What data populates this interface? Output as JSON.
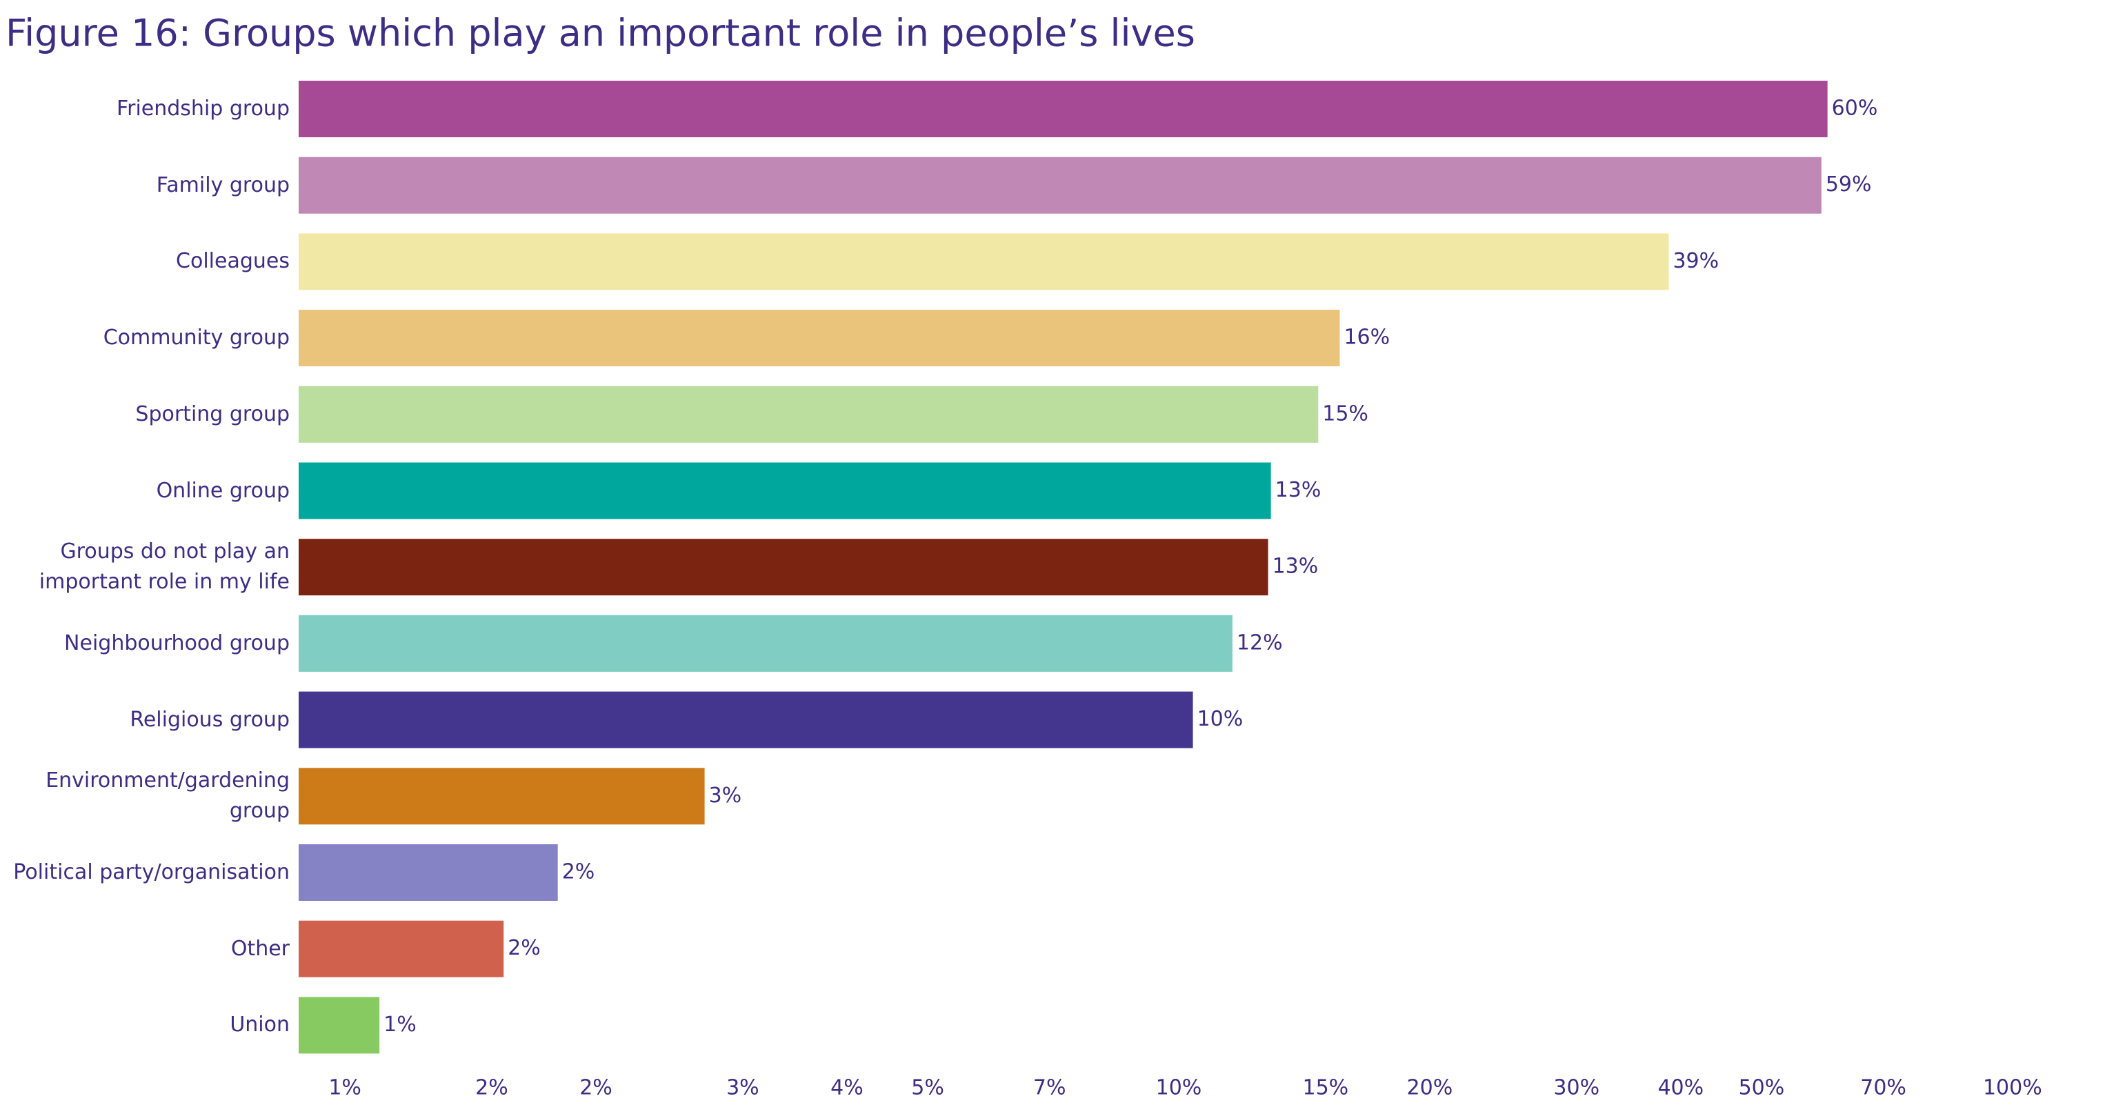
{
  "chart_data": {
    "type": "bar",
    "orientation": "horizontal",
    "title": "Figure 16: Groups which play an important role in people’s lives",
    "categories": [
      "Friendship group",
      "Family group",
      "Colleagues",
      "Community group",
      "Sporting group",
      "Online group",
      "Groups do not play an\nimportant role in my life",
      "Neighbourhood group",
      "Religious group",
      "Environment/gardening\ngroup",
      "Political party/organisation",
      "Other",
      "Union"
    ],
    "values": [
      60,
      59,
      38.7,
      15.6,
      14.7,
      12.9,
      12.8,
      11.6,
      10.4,
      2.7,
      1.8,
      1.55,
      1.1
    ],
    "value_labels": [
      "60%",
      "59%",
      "39%",
      "16%",
      "15%",
      "13%",
      "13%",
      "12%",
      "10%",
      "3%",
      "2%",
      "2%",
      "1%"
    ],
    "colors": [
      "#a64a96",
      "#c088b4",
      "#f2e8a6",
      "#ebc47c",
      "#bbdd9e",
      "#00a79d",
      "#7b2412",
      "#80cdc3",
      "#44358f",
      "#cd7a19",
      "#8682c6",
      "#d0614c",
      "#88ca62"
    ],
    "xscale": "log",
    "xlim": [
      0.88,
      125
    ],
    "xticks": [
      {
        "value": 1,
        "label": "1%"
      },
      {
        "value": 1.5,
        "label": "2%"
      },
      {
        "value": 2,
        "label": "2%"
      },
      {
        "value": 3,
        "label": "3%"
      },
      {
        "value": 4,
        "label": "4%"
      },
      {
        "value": 5,
        "label": "5%"
      },
      {
        "value": 7,
        "label": "7%"
      },
      {
        "value": 10,
        "label": "10%"
      },
      {
        "value": 15,
        "label": "15%"
      },
      {
        "value": 20,
        "label": "20%"
      },
      {
        "value": 30,
        "label": "30%"
      },
      {
        "value": 40,
        "label": "40%"
      },
      {
        "value": 50,
        "label": "50%"
      },
      {
        "value": 70,
        "label": "70%"
      },
      {
        "value": 100,
        "label": "100%"
      }
    ],
    "grid": false
  }
}
